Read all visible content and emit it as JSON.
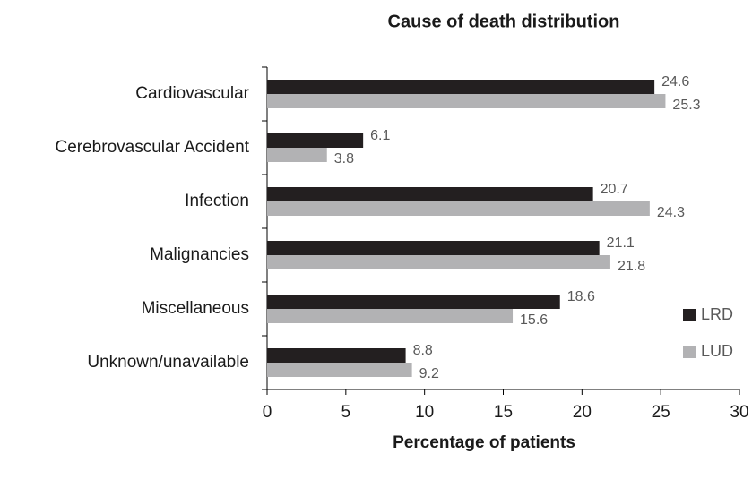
{
  "chart_data": {
    "type": "hbar",
    "title": "Cause of death distribution",
    "x_label": "Percentage of patients",
    "categories": [
      "Cardiovascular",
      "Cerebrovascular Accident",
      "Infection",
      "Malignancies",
      "Miscellaneous",
      "Unknown/unavailable"
    ],
    "series": [
      {
        "name": "LRD",
        "color": "#231f20",
        "values": [
          24.6,
          6.1,
          20.7,
          21.1,
          18.6,
          8.8
        ]
      },
      {
        "name": "LUD",
        "color": "#b2b2b4",
        "values": [
          25.3,
          3.8,
          24.3,
          21.8,
          15.6,
          9.2
        ]
      }
    ],
    "xlim": [
      0,
      30
    ],
    "xticks": [
      0,
      5,
      10,
      15,
      20,
      25,
      30
    ],
    "legend": "right"
  }
}
